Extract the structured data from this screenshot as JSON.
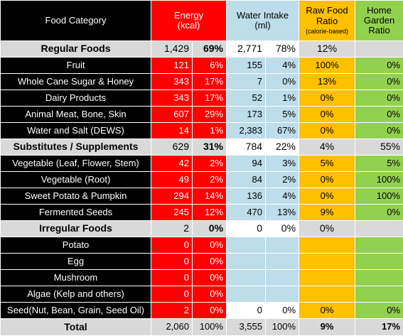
{
  "header": {
    "category": "Food Category",
    "energy": [
      "Energy",
      "(kcal)"
    ],
    "water": [
      "Water Intake",
      "(ml)"
    ],
    "raw": [
      "Raw Food",
      "Ratio",
      "(calorie-based)"
    ],
    "garden": [
      "Home",
      "Garden",
      "Ratio"
    ]
  },
  "groups": [
    {
      "name": "Regular Foods",
      "energy": "1,429",
      "energy_pct": "69%",
      "water": "2,771",
      "water_pct": "78%",
      "raw": "12%",
      "garden": "",
      "rows": [
        {
          "name": "Fruit",
          "energy": "121",
          "energy_pct": "6%",
          "water": "155",
          "water_pct": "4%",
          "raw": "100%",
          "garden": "0%"
        },
        {
          "name": "Whole Cane Sugar & Honey",
          "energy": "343",
          "energy_pct": "17%",
          "water": "7",
          "water_pct": "0%",
          "raw": "13%",
          "garden": "0%"
        },
        {
          "name": "Dairy Products",
          "energy": "343",
          "energy_pct": "17%",
          "water": "52",
          "water_pct": "1%",
          "raw": "0%",
          "garden": "0%"
        },
        {
          "name": "Animal Meat, Bone, Skin",
          "energy": "607",
          "energy_pct": "29%",
          "water": "173",
          "water_pct": "5%",
          "raw": "0%",
          "garden": "0%"
        },
        {
          "name": "Water and Salt (DEWS)",
          "energy": "14",
          "energy_pct": "1%",
          "water": "2,383",
          "water_pct": "67%",
          "raw": "0%",
          "garden": "0%"
        }
      ]
    },
    {
      "name": "Substitutes / Supplements",
      "energy": "629",
      "energy_pct": "31%",
      "water": "784",
      "water_pct": "22%",
      "raw": "4%",
      "garden": "55%",
      "rows": [
        {
          "name": "Vegetable (Leaf, Flower, Stem)",
          "energy": "42",
          "energy_pct": "2%",
          "water": "94",
          "water_pct": "3%",
          "raw": "5%",
          "garden": "5%"
        },
        {
          "name": "Vegetable (Root)",
          "energy": "49",
          "energy_pct": "2%",
          "water": "84",
          "water_pct": "2%",
          "raw": "0%",
          "garden": "100%"
        },
        {
          "name": "Sweet Potato & Pumpkin",
          "energy": "294",
          "energy_pct": "14%",
          "water": "136",
          "water_pct": "4%",
          "raw": "0%",
          "garden": "100%"
        },
        {
          "name": "Fermented Seeds",
          "energy": "245",
          "energy_pct": "12%",
          "water": "470",
          "water_pct": "13%",
          "raw": "9%",
          "garden": "0%"
        }
      ]
    },
    {
      "name": "Irregular Foods",
      "energy": "2",
      "energy_pct": "0%",
      "water": "0",
      "water_pct": "0%",
      "raw": "0%",
      "garden": "",
      "rows": [
        {
          "name": "Potato",
          "energy": "0",
          "energy_pct": "0%",
          "water": "",
          "water_pct": "",
          "raw": "",
          "garden": ""
        },
        {
          "name": "Egg",
          "energy": "0",
          "energy_pct": "0%",
          "water": "",
          "water_pct": "",
          "raw": "",
          "garden": ""
        },
        {
          "name": "Mushroom",
          "energy": "0",
          "energy_pct": "0%",
          "water": "",
          "water_pct": "",
          "raw": "",
          "garden": ""
        },
        {
          "name": "Algae (Kelp and others)",
          "energy": "0",
          "energy_pct": "0%",
          "water": "",
          "water_pct": "",
          "raw": "",
          "garden": ""
        },
        {
          "name": "Seed(Nut, Bean, Grain, Seed Oil)",
          "energy": "2",
          "energy_pct": "0%",
          "water": "0",
          "water_pct": "0%",
          "raw": "0%",
          "garden": "0%"
        }
      ]
    }
  ],
  "total": {
    "name": "Total",
    "energy": "2,060",
    "energy_pct": "100%",
    "water": "3,555",
    "water_pct": "100%",
    "raw": "9%",
    "garden": "17%"
  },
  "colors": {
    "energy": "#ff0000",
    "water": "#bcdde9",
    "raw": "#ffc000",
    "garden": "#92d050",
    "group": "#d9d9d9",
    "label": "#000000"
  }
}
